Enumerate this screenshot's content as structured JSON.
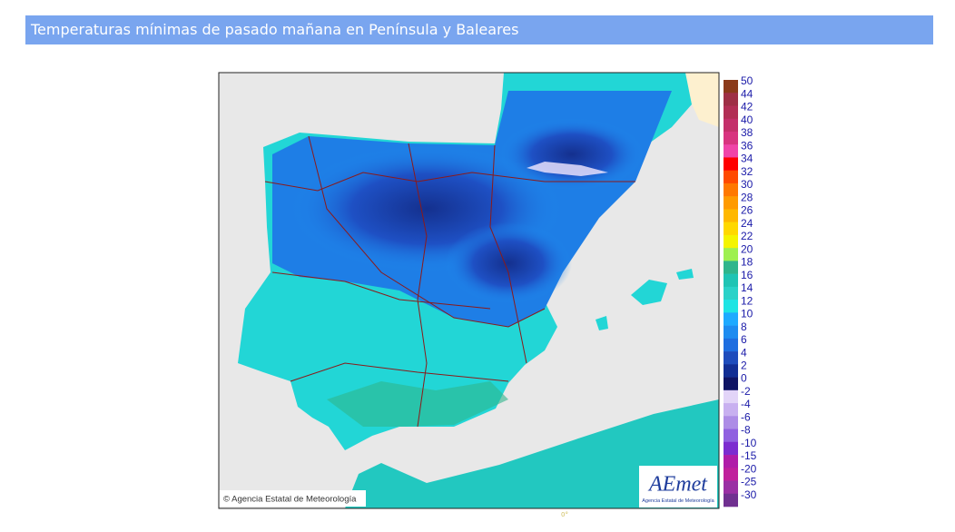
{
  "header": {
    "title": "Temperaturas mínimas de pasado mañana en Península y Baleares"
  },
  "map": {
    "credit": "© Agencia Estatal de Meteorología",
    "meridian_label": "0°"
  },
  "logo": {
    "name": "AEmet",
    "subtitle": "Agencia Estatal de Meteorología"
  },
  "legend": {
    "items": [
      {
        "value": 50,
        "color": "#8b3a1a"
      },
      {
        "value": 44,
        "color": "#9e2f45"
      },
      {
        "value": 42,
        "color": "#b22f55"
      },
      {
        "value": 40,
        "color": "#c4306a"
      },
      {
        "value": 38,
        "color": "#d8347f"
      },
      {
        "value": 36,
        "color": "#f044a8"
      },
      {
        "value": 34,
        "color": "#ff0000"
      },
      {
        "value": 32,
        "color": "#ff4a00"
      },
      {
        "value": 30,
        "color": "#ff7800"
      },
      {
        "value": 28,
        "color": "#ff9a00"
      },
      {
        "value": 26,
        "color": "#ffb800"
      },
      {
        "value": 24,
        "color": "#ffd800"
      },
      {
        "value": 22,
        "color": "#f4f400"
      },
      {
        "value": 20,
        "color": "#9ef050"
      },
      {
        "value": 18,
        "color": "#2fb58c"
      },
      {
        "value": 16,
        "color": "#1fc4b4"
      },
      {
        "value": 14,
        "color": "#2ad2c8"
      },
      {
        "value": 12,
        "color": "#1ee4e4"
      },
      {
        "value": 10,
        "color": "#1eaaff"
      },
      {
        "value": 8,
        "color": "#1e8cf0"
      },
      {
        "value": 6,
        "color": "#1e6ee0"
      },
      {
        "value": 4,
        "color": "#1e4cbc"
      },
      {
        "value": 2,
        "color": "#122e94"
      },
      {
        "value": 0,
        "color": "#0f1464"
      },
      {
        "value": -2,
        "color": "#e2d4f8"
      },
      {
        "value": -4,
        "color": "#c8b0f0"
      },
      {
        "value": -6,
        "color": "#ad8ce6"
      },
      {
        "value": -8,
        "color": "#9060e0"
      },
      {
        "value": -10,
        "color": "#7c2cd0"
      },
      {
        "value": -15,
        "color": "#b01ca8"
      },
      {
        "value": -20,
        "color": "#c0209c"
      },
      {
        "value": -25,
        "color": "#9a2fa4"
      },
      {
        "value": -30,
        "color": "#703090"
      }
    ]
  }
}
